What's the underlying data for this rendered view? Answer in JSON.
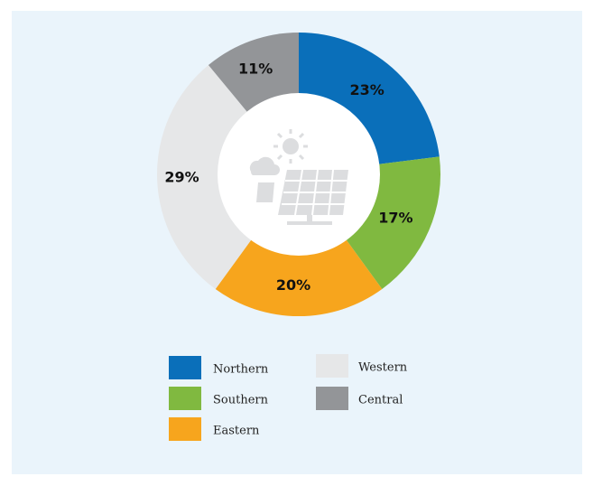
{
  "chart_data": {
    "type": "pie",
    "categories": [
      "Northern",
      "Southern",
      "Eastern",
      "Western",
      "Central"
    ],
    "values": [
      23,
      17,
      20,
      29,
      11
    ],
    "value_labels": [
      "23%",
      "17%",
      "20%",
      "29%",
      "11%"
    ],
    "colors": [
      "#0a6fba",
      "#80b940",
      "#f7a51d",
      "#e6e7e8",
      "#939598"
    ]
  }
}
